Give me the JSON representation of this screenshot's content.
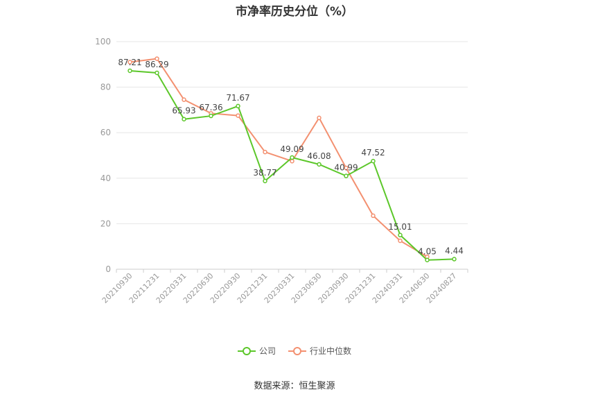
{
  "title": "市净率历史分位（%）",
  "source": "数据来源：恒生聚源",
  "colors": {
    "company": "#5cc72a",
    "industry": "#f39070",
    "grid": "#e6e6e6",
    "axis": "#999999"
  },
  "chart_data": {
    "type": "line",
    "title": "市净率历史分位（%）",
    "categories": [
      "20210930",
      "20211231",
      "20220331",
      "20220630",
      "20220930",
      "20221231",
      "20230331",
      "20230630",
      "20230930",
      "20231231",
      "20240331",
      "20240630",
      "20240827"
    ],
    "ylim": [
      0,
      100
    ],
    "yticks": [
      0,
      20,
      40,
      60,
      80,
      100
    ],
    "grid": true,
    "legend_position": "bottom",
    "series": [
      {
        "name": "公司",
        "values": [
          87.21,
          86.29,
          65.93,
          67.36,
          71.67,
          38.77,
          49.09,
          46.08,
          40.99,
          47.52,
          15.01,
          4.05,
          4.44
        ],
        "labels": true
      },
      {
        "name": "行业中位数",
        "values": [
          91.0,
          92.5,
          74.5,
          68.5,
          67.5,
          51.5,
          47.5,
          66.5,
          44.5,
          23.5,
          12.5,
          5.5,
          null
        ],
        "labels": false
      }
    ]
  }
}
